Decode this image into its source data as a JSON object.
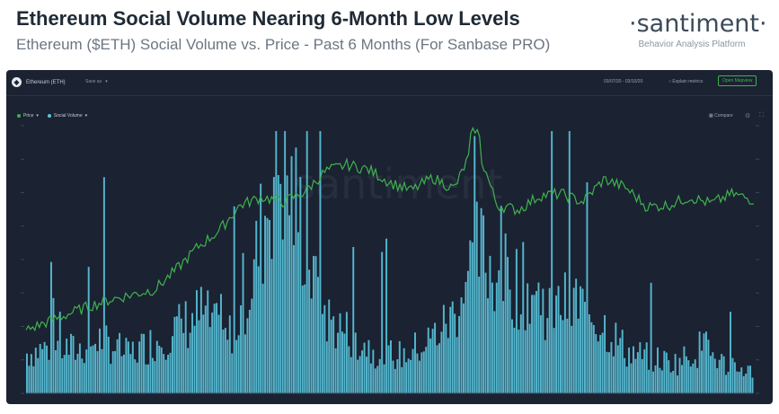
{
  "header": {
    "title": "Ethereum Social Volume Nearing 6-Month Low Levels",
    "subtitle": "Ethereum ($ETH) Social Volume vs. Price - Past 6 Months (For Sanbase PRO)"
  },
  "brand": {
    "name": "·santiment·",
    "tagline": "Behavior Analysis Platform"
  },
  "toolbar": {
    "asset_name": "Ethereum (ETH)",
    "save_as": "Save as",
    "date_range": "03/07/20 - 03/10/20",
    "explain_metrics": "Explain metrics",
    "open_mapview": "Open Mapview",
    "compare": "Compare"
  },
  "legend": {
    "price": "Price",
    "social_volume": "Social Volume"
  },
  "watermark": "santiment",
  "colors": {
    "panel_bg": "#1b2232",
    "price_line": "#3fb24e",
    "volume_bars": "#5bc6de",
    "headline": "#1f2a36",
    "subtitle": "#6b7682"
  },
  "chart_data": {
    "type": "bar",
    "title": "",
    "grid": false,
    "period_months": 6,
    "volume_samples": [
      60,
      70,
      64,
      82,
      58,
      75,
      96,
      120,
      78,
      170,
      360,
      250,
      112,
      86,
      62,
      56,
      76,
      114,
      212,
      176,
      156,
      126,
      136,
      105,
      62,
      52,
      46,
      70,
      40,
      34
    ],
    "price_samples": [
      198,
      208,
      218,
      228,
      236,
      242,
      248,
      272,
      300,
      320,
      352,
      362,
      356,
      368,
      394,
      402,
      396,
      380,
      370,
      386,
      372,
      430,
      352,
      346,
      364,
      366,
      356,
      384,
      374,
      350,
      352,
      362,
      354,
      366,
      358
    ],
    "price_peak": {
      "index": 21,
      "value": 430
    },
    "volume_peak": {
      "index": 10,
      "value": 360
    },
    "series": [
      {
        "key": "price",
        "color": "#3fb24e",
        "style": "line"
      },
      {
        "key": "social_volume",
        "color": "#5bc6de",
        "style": "bar"
      }
    ]
  }
}
